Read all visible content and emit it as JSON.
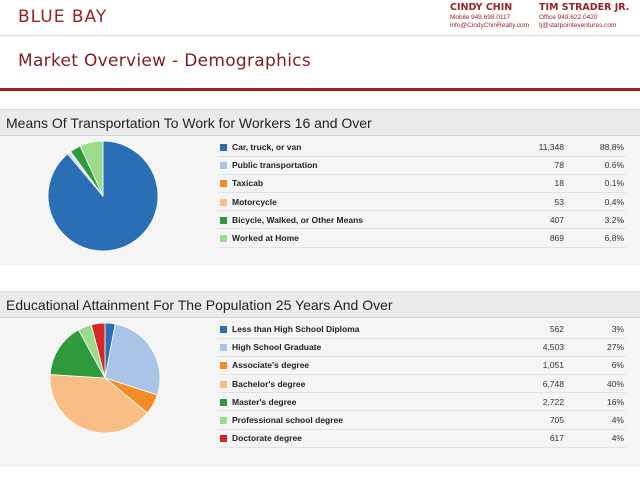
{
  "header": {
    "brand": "BLUE BAY",
    "agents": [
      {
        "name": "CINDY CHIN",
        "phone": "Mobile 949.698.0117",
        "email": "info@CindyChinRealty.com"
      },
      {
        "name": "TIM STRADER JR.",
        "phone": "Office 949.622.0420",
        "email": "tj@starpointeventures.com"
      }
    ]
  },
  "page": {
    "title": "Market Overview - Demographics"
  },
  "transportation": {
    "title": "Means Of Transportation To Work for Workers 16 and Over",
    "rows": [
      {
        "label": "Car, truck, or van",
        "count": "11,348",
        "percent": "88.8%",
        "value": 88.8,
        "color": "#2a6fb5"
      },
      {
        "label": "Public transportation",
        "count": "78",
        "percent": "0.6%",
        "value": 0.6,
        "color": "#a9c4e6"
      },
      {
        "label": "Taxicab",
        "count": "18",
        "percent": "0.1%",
        "value": 0.1,
        "color": "#f28c28"
      },
      {
        "label": "Motorcycle",
        "count": "53",
        "percent": "0.4%",
        "value": 0.4,
        "color": "#f9be86"
      },
      {
        "label": "Bicycle, Walked, or Other Means",
        "count": "407",
        "percent": "3.2%",
        "value": 3.2,
        "color": "#2e9a3c"
      },
      {
        "label": "Worked at Home",
        "count": "869",
        "percent": "6.8%",
        "value": 6.8,
        "color": "#98dc8c"
      }
    ]
  },
  "education": {
    "title": "Educational Attainment For The Population 25 Years And Over",
    "rows": [
      {
        "label": "Less than High School Diploma",
        "count": "562",
        "percent": "3%",
        "value": 3,
        "color": "#2a6fb5"
      },
      {
        "label": "High School Graduate",
        "count": "4,503",
        "percent": "27%",
        "value": 27,
        "color": "#a9c4e6"
      },
      {
        "label": "Associate's degree",
        "count": "1,051",
        "percent": "6%",
        "value": 6,
        "color": "#f28c28"
      },
      {
        "label": "Bachelor's degree",
        "count": "6,748",
        "percent": "40%",
        "value": 40,
        "color": "#f9be86"
      },
      {
        "label": "Master's degree",
        "count": "2,722",
        "percent": "16%",
        "value": 16,
        "color": "#2e9a3c"
      },
      {
        "label": "Professional school degree",
        "count": "705",
        "percent": "4%",
        "value": 4,
        "color": "#98dc8c"
      },
      {
        "label": "Doctorate degree",
        "count": "617",
        "percent": "4%",
        "value": 4,
        "color": "#d62728"
      }
    ]
  }
}
